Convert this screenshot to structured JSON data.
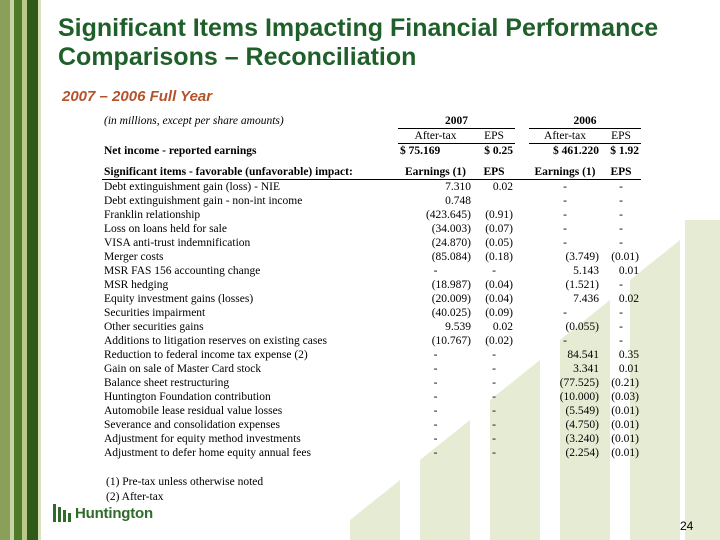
{
  "slide": {
    "title": "Significant Items Impacting Financial Performance Comparisons – Reconciliation",
    "subtitle": "2007 – 2006 Full Year",
    "page_number": "24",
    "logo_text": "Huntington"
  },
  "table": {
    "units_note": "(in millions, except per share amounts)",
    "year_2007": "2007",
    "year_2006": "2006",
    "col_after_tax": "After-tax",
    "col_eps": "EPS",
    "net_income": {
      "label": "Net income - reported earnings",
      "v2007": "$     75.169",
      "eps2007": "$     0.25",
      "v2006": "$   461.220",
      "eps2006": "$     1.92"
    },
    "items_header": {
      "label": "Significant items - favorable (unfavorable) impact:",
      "col_earnings": "Earnings (1)",
      "col_eps": "EPS"
    },
    "rows": [
      {
        "label": "Debt extinguishment gain (loss) - NIE",
        "e2007": "7.310",
        "p2007": "0.02",
        "e2006": "-",
        "p2006": "-"
      },
      {
        "label": "Debt extinguishment gain - non-int income",
        "e2007": "0.748",
        "p2007": "",
        "e2006": "-",
        "p2006": "-"
      },
      {
        "label": "Franklin relationship",
        "e2007": "(423.645)",
        "p2007": "(0.91)",
        "e2006": "-",
        "p2006": "-"
      },
      {
        "label": "Loss on loans held for sale",
        "e2007": "(34.003)",
        "p2007": "(0.07)",
        "e2006": "-",
        "p2006": "-"
      },
      {
        "label": "VISA anti-trust indemnification",
        "e2007": "(24.870)",
        "p2007": "(0.05)",
        "e2006": "-",
        "p2006": "-"
      },
      {
        "label": "Merger costs",
        "e2007": "(85.084)",
        "p2007": "(0.18)",
        "e2006": "(3.749)",
        "p2006": "(0.01)"
      },
      {
        "label": "MSR FAS 156 accounting change",
        "e2007": "-",
        "p2007": "-",
        "e2006": "5.143",
        "p2006": "0.01"
      },
      {
        "label": "MSR hedging",
        "e2007": "(18.987)",
        "p2007": "(0.04)",
        "e2006": "(1.521)",
        "p2006": "-"
      },
      {
        "label": "Equity investment gains (losses)",
        "e2007": "(20.009)",
        "p2007": "(0.04)",
        "e2006": "7.436",
        "p2006": "0.02"
      },
      {
        "label": "Securities impairment",
        "e2007": "(40.025)",
        "p2007": "(0.09)",
        "e2006": "-",
        "p2006": "-"
      },
      {
        "label": "Other securities gains",
        "e2007": "9.539",
        "p2007": "0.02",
        "e2006": "(0.055)",
        "p2006": "-"
      },
      {
        "label": "Additions to litigation reserves on existing cases",
        "e2007": "(10.767)",
        "p2007": "(0.02)",
        "e2006": "-",
        "p2006": "-"
      },
      {
        "label": "Reduction to federal income tax expense (2)",
        "e2007": "-",
        "p2007": "-",
        "e2006": "84.541",
        "p2006": "0.35"
      },
      {
        "label": "Gain on sale of Master Card stock",
        "e2007": "-",
        "p2007": "-",
        "e2006": "3.341",
        "p2006": "0.01"
      },
      {
        "label": "Balance sheet restructuring",
        "e2007": "-",
        "p2007": "-",
        "e2006": "(77.525)",
        "p2006": "(0.21)"
      },
      {
        "label": "Huntington Foundation contribution",
        "e2007": "-",
        "p2007": "-",
        "e2006": "(10.000)",
        "p2006": "(0.03)"
      },
      {
        "label": "Automobile lease residual value losses",
        "e2007": "-",
        "p2007": "-",
        "e2006": "(5.549)",
        "p2006": "(0.01)"
      },
      {
        "label": "Severance and consolidation expenses",
        "e2007": "-",
        "p2007": "-",
        "e2006": "(4.750)",
        "p2006": "(0.01)"
      },
      {
        "label": "Adjustment for equity method investments",
        "e2007": "-",
        "p2007": "-",
        "e2006": "(3.240)",
        "p2006": "(0.01)"
      },
      {
        "label": "Adjustment to defer home equity annual fees",
        "e2007": "-",
        "p2007": "-",
        "e2006": "(2.254)",
        "p2006": "(0.01)"
      }
    ]
  },
  "footnotes": [
    "(1) Pre-tax unless otherwise noted",
    "(2) After-tax"
  ],
  "colors": {
    "title": "#1f5f2a",
    "subtitle": "#b4532a",
    "accent": "#4e7a2a"
  }
}
